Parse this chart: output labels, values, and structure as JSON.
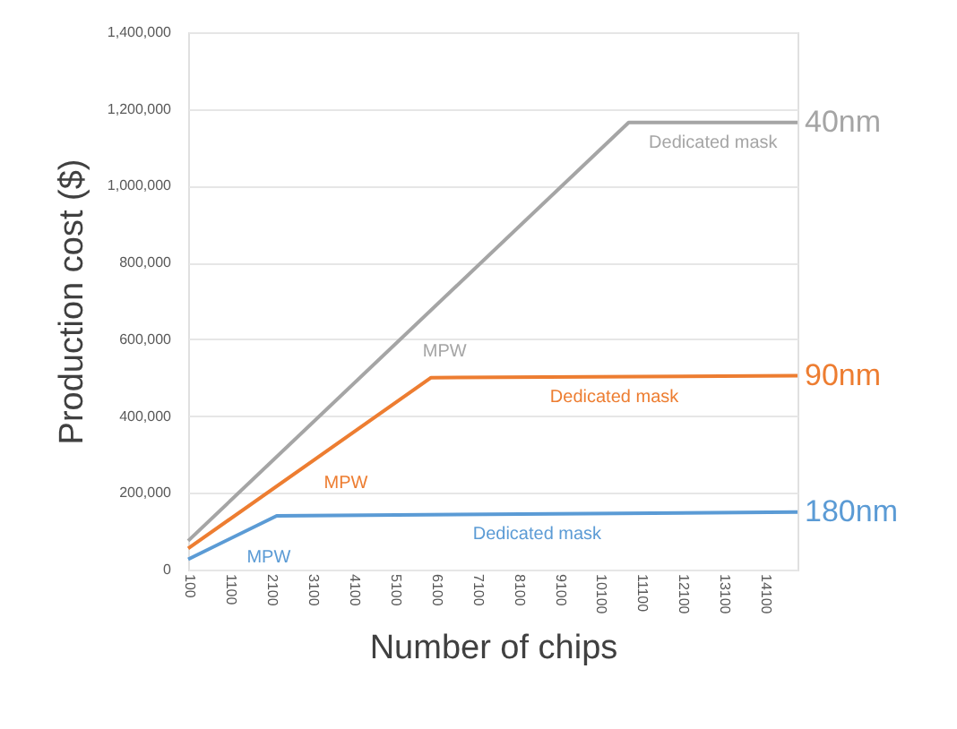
{
  "chart_data": {
    "type": "line",
    "xlabel": "Number of chips",
    "ylabel": "Production cost ($)",
    "xlim": [
      100,
      14900
    ],
    "xticks": [
      100,
      1100,
      2100,
      3100,
      4100,
      5100,
      6100,
      7100,
      8100,
      9100,
      10100,
      11100,
      12100,
      13100,
      14100
    ],
    "ylim": [
      0,
      1400000
    ],
    "yticks": [
      {
        "value": 0,
        "label": "0"
      },
      {
        "value": 200000,
        "label": "200,000"
      },
      {
        "value": 400000,
        "label": "400,000"
      },
      {
        "value": 600000,
        "label": "600,000"
      },
      {
        "value": 800000,
        "label": "800,000"
      },
      {
        "value": 1000000,
        "label": "1,000,000"
      },
      {
        "value": 1200000,
        "label": "1,200,000"
      },
      {
        "value": 1400000,
        "label": "1,400,000"
      }
    ],
    "grid": "y",
    "legend": false,
    "marker": "none",
    "line_style": "solid",
    "series": [
      {
        "name": "40nm",
        "color": "#a5a5a5",
        "x": [
          100,
          10800,
          14900
        ],
        "values": [
          75000,
          1165000,
          1165000
        ]
      },
      {
        "name": "90nm",
        "color": "#ed7d31",
        "x": [
          100,
          6000,
          14900
        ],
        "values": [
          55000,
          500000,
          505000
        ]
      },
      {
        "name": "180nm",
        "color": "#5b9bd5",
        "x": [
          100,
          2250,
          14900
        ],
        "values": [
          27000,
          140000,
          150000
        ]
      }
    ],
    "annotations": [
      "MPW",
      "Dedicated mask",
      "MPW",
      "Dedicated mask",
      "MPW",
      "Dedicated mask"
    ]
  }
}
